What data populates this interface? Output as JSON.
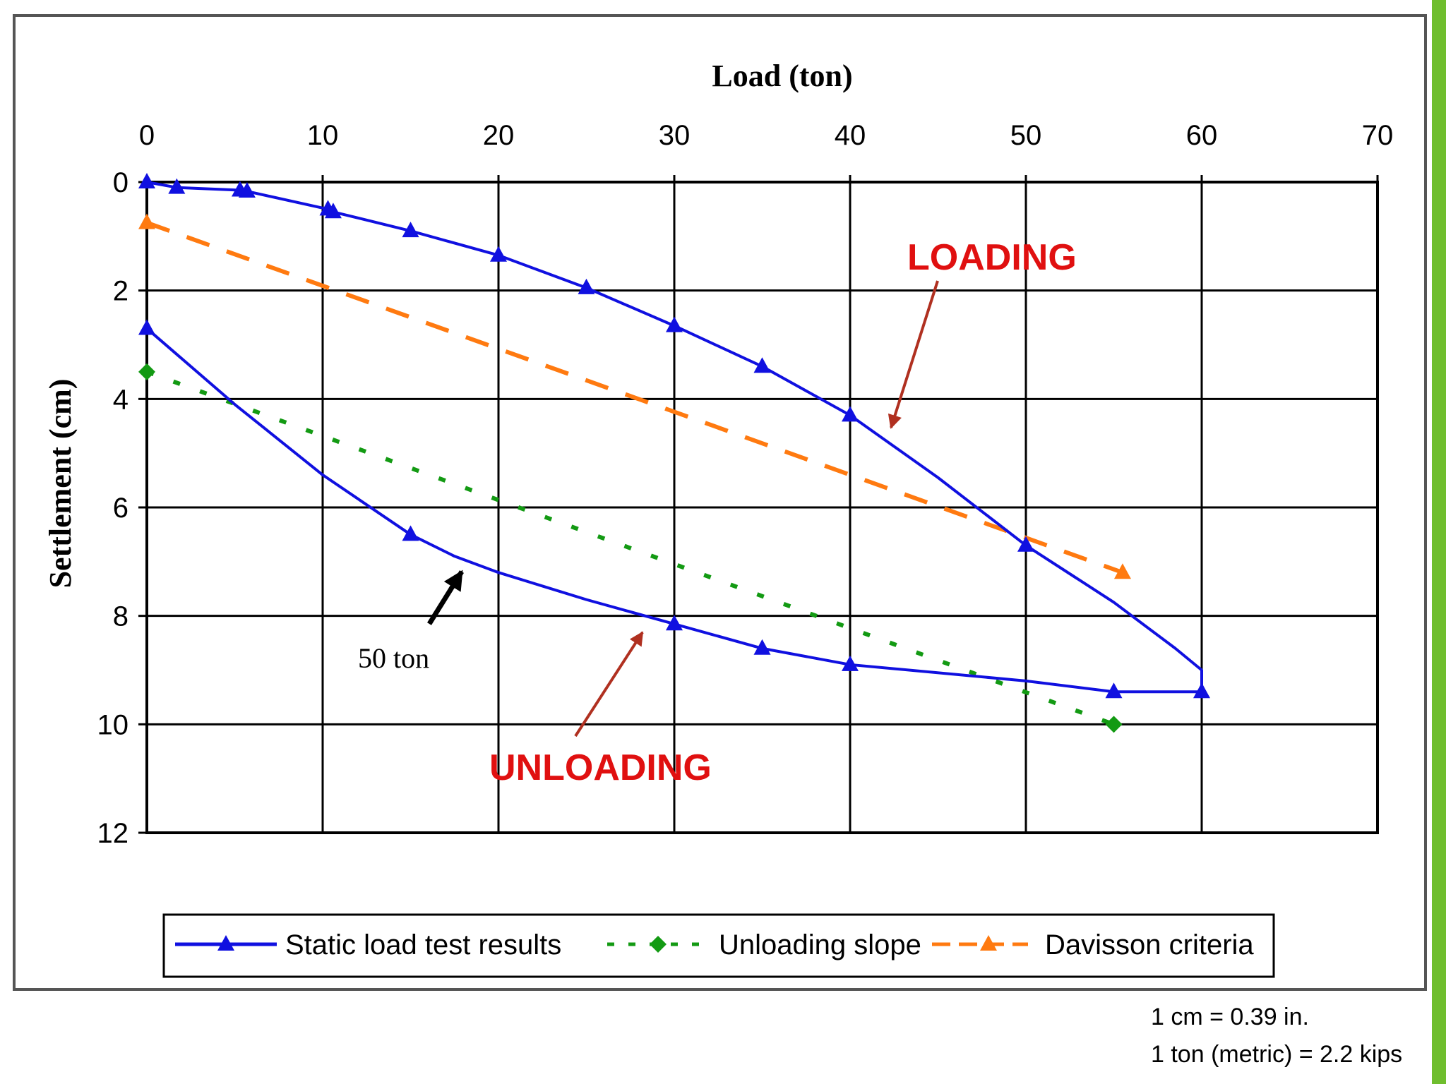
{
  "colors": {
    "accent_bar": "#6fbe2e",
    "loading_line": "#1010e0",
    "unloading_slope": "#139a13",
    "davisson": "#ff7a10",
    "annotation_red": "#e01010",
    "arrow_red": "#b03020",
    "grid": "#000000"
  },
  "chart_data": {
    "type": "line",
    "title": "Load (ton)",
    "xlabel": "Load (ton)",
    "ylabel": "Settlement (cm)",
    "x_axis_position": "top",
    "y_axis_inverted": true,
    "xlim": [
      0,
      70
    ],
    "ylim": [
      0,
      12
    ],
    "xticks": [
      0,
      10,
      20,
      30,
      40,
      50,
      60,
      70
    ],
    "yticks": [
      0,
      2,
      4,
      6,
      8,
      10,
      12
    ],
    "grid": true,
    "legend_position": "bottom",
    "series": [
      {
        "name": "Static load test results",
        "style": "solid",
        "marker": "triangle",
        "color": "#1010e0",
        "points": [
          [
            0,
            0.0
          ],
          [
            1.7,
            0.1
          ],
          [
            5.3,
            0.15
          ],
          [
            5.7,
            0.17
          ],
          [
            10.3,
            0.5
          ],
          [
            10.6,
            0.55
          ],
          [
            15,
            0.9
          ],
          [
            20,
            1.35
          ],
          [
            25,
            1.95
          ],
          [
            30,
            2.65
          ],
          [
            35,
            3.4
          ],
          [
            40,
            4.3
          ],
          [
            45,
            5.45
          ],
          [
            50,
            6.7
          ],
          [
            55,
            7.75
          ],
          [
            58.5,
            8.6
          ],
          [
            60,
            9.0
          ],
          [
            60,
            9.4
          ],
          [
            55,
            9.4
          ],
          [
            50,
            9.2
          ],
          [
            40,
            8.9
          ],
          [
            35,
            8.6
          ],
          [
            30,
            8.15
          ],
          [
            25,
            7.7
          ],
          [
            20,
            7.2
          ],
          [
            17.5,
            6.9
          ],
          [
            15,
            6.5
          ],
          [
            10,
            5.4
          ],
          [
            5,
            4.1
          ],
          [
            0,
            2.7
          ]
        ]
      },
      {
        "name": "Unloading slope",
        "style": "dotted",
        "marker": "diamond",
        "color": "#139a13",
        "points": [
          [
            0,
            3.5
          ],
          [
            55,
            10.0
          ]
        ]
      },
      {
        "name": "Davisson criteria",
        "style": "dashed",
        "marker": "triangle",
        "color": "#ff7a10",
        "points": [
          [
            0,
            0.75
          ],
          [
            55.5,
            7.2
          ]
        ]
      }
    ],
    "annotations": [
      {
        "text": "LOADING",
        "color": "#e01010"
      },
      {
        "text": "UNLOADING",
        "color": "#e01010"
      },
      {
        "text": "50 ton",
        "color": "#000000"
      }
    ],
    "footnotes": [
      "1 cm = 0.39 in.",
      "1 ton (metric) = 2.2 kips"
    ]
  }
}
